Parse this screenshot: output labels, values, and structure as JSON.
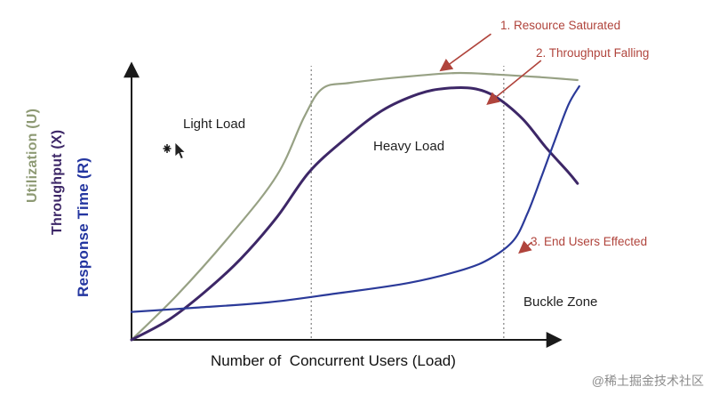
{
  "chart_data": {
    "type": "line",
    "title": "",
    "xlabel": "Number of  Concurrent Users (Load)",
    "axes": {
      "x_range": [
        0,
        100
      ],
      "y_range": [
        0,
        100
      ],
      "ticks": "none",
      "grid": false
    },
    "y_axis_labels": [
      {
        "text": "Utilization (U)",
        "color": "#8e9a74"
      },
      {
        "text": "Throughput (X)",
        "color": "#3d2767"
      },
      {
        "text": "Response Time (R)",
        "color": "#2436a0"
      }
    ],
    "zones": {
      "labels": [
        {
          "text": "Light Load"
        },
        {
          "text": "Heavy Load"
        },
        {
          "text": "Buckle Zone"
        }
      ],
      "boundaries_x": [
        39.5,
        81.8
      ]
    },
    "series": [
      {
        "id": "utilization",
        "name": "Utilization (U)",
        "color": "#97a184",
        "width": 2.2,
        "points": [
          [
            0,
            0
          ],
          [
            10,
            16
          ],
          [
            22,
            38
          ],
          [
            32,
            59
          ],
          [
            38,
            80
          ],
          [
            42,
            90
          ],
          [
            48,
            92
          ],
          [
            59,
            94
          ],
          [
            71,
            95.5
          ],
          [
            80,
            95
          ],
          [
            90,
            94
          ],
          [
            98,
            93
          ]
        ]
      },
      {
        "id": "throughput",
        "name": "Throughput (X)",
        "color": "#3d2767",
        "width": 3,
        "points": [
          [
            0,
            0
          ],
          [
            8,
            7
          ],
          [
            16,
            17
          ],
          [
            24,
            29
          ],
          [
            32,
            44
          ],
          [
            39,
            60
          ],
          [
            47,
            72
          ],
          [
            55,
            82
          ],
          [
            63,
            88
          ],
          [
            69,
            90
          ],
          [
            75,
            90
          ],
          [
            80,
            87
          ],
          [
            86,
            79
          ],
          [
            91,
            69
          ],
          [
            96,
            60
          ],
          [
            98,
            56
          ]
        ]
      },
      {
        "id": "response-time",
        "name": "Response Time (R)",
        "color": "#2b3a99",
        "width": 2.2,
        "points": [
          [
            0,
            10
          ],
          [
            14,
            11.5
          ],
          [
            30,
            13.4
          ],
          [
            45,
            16.6
          ],
          [
            61,
            20.4
          ],
          [
            73,
            25.2
          ],
          [
            79,
            29.3
          ],
          [
            84,
            35.7
          ],
          [
            87,
            45.2
          ],
          [
            90,
            58
          ],
          [
            93,
            71.3
          ],
          [
            96,
            84.1
          ],
          [
            98.4,
            90.8
          ]
        ]
      }
    ],
    "annotations": [
      {
        "label": "1. Resource Saturated",
        "arrow_from": [
          79,
          109.5
        ],
        "arrow_to": [
          68,
          96.5
        ]
      },
      {
        "label": "2. Throughput Falling",
        "arrow_from": [
          90,
          100
        ],
        "arrow_to": [
          78.3,
          84.5
        ]
      },
      {
        "label": "3. End Users Effected",
        "arrow_from": [
          88,
          35
        ],
        "arrow_to": [
          85.3,
          31.3
        ]
      }
    ],
    "annotation_color": "#b0443c",
    "axis_color": "#1a1a1a",
    "zone_line_color": "#8a8a8a"
  },
  "watermark": "@稀土掘金技术社区"
}
